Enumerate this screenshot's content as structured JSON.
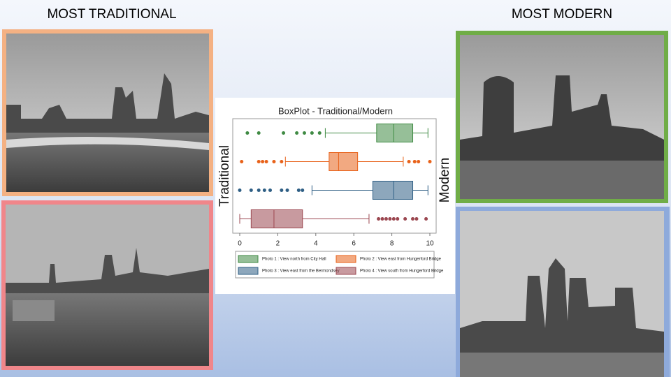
{
  "labels": {
    "left": "MOST TRADITIONAL",
    "right": "MOST MODERN"
  },
  "chart_data": {
    "type": "boxplot",
    "title": "BoxPlot - Traditional/Modern",
    "y_label": "Traditional",
    "y2_label": "Modern",
    "xlim": [
      0,
      10
    ],
    "xticks": [
      0,
      2,
      4,
      6,
      8,
      10
    ],
    "series": [
      {
        "name": "Photo 1 : View north from City Hall",
        "color": "#3f8a43",
        "min": 4.5,
        "q1": 7.2,
        "median": 8.1,
        "q3": 9.1,
        "max": 9.9,
        "outliers": [
          0.4,
          1.0,
          2.3,
          3.0,
          3.4,
          3.8,
          4.2
        ]
      },
      {
        "name": "Photo 2 : View east from Hungerford Bridge",
        "color": "#e8621a",
        "min": 2.4,
        "q1": 4.7,
        "median": 5.2,
        "q3": 6.2,
        "max": 8.6,
        "outliers": [
          0.1,
          1.0,
          1.2,
          1.4,
          1.8,
          2.2,
          8.9,
          9.2,
          9.4,
          10
        ]
      },
      {
        "name": "Photo 3 : View east from the Bermondsey",
        "color": "#2f5f85",
        "min": 3.8,
        "q1": 7.0,
        "median": 8.1,
        "q3": 9.1,
        "max": 9.9,
        "outliers": [
          0,
          0.6,
          1.0,
          1.3,
          1.6,
          2.2,
          2.5,
          3.1,
          3.3
        ]
      },
      {
        "name": "Photo 4 : View south from Hungerford Bridge",
        "color": "#9b4750",
        "min": 0,
        "q1": 0.6,
        "median": 1.8,
        "q3": 3.3,
        "max": 6.8,
        "outliers": [
          7.3,
          7.5,
          7.7,
          7.9,
          8.1,
          8.3,
          8.7,
          9.1,
          9.3,
          9.8
        ]
      }
    ]
  }
}
